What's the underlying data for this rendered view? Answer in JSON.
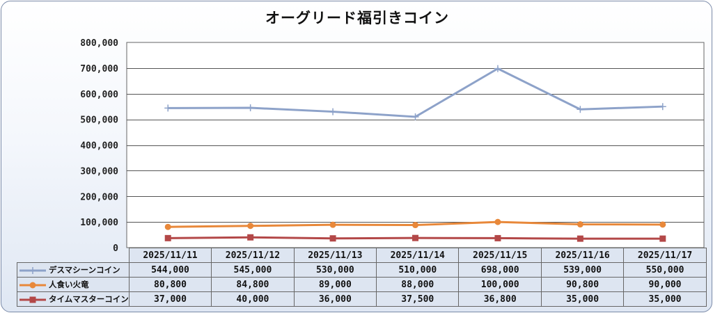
{
  "chart_data": {
    "type": "line",
    "title": "オーグリード福引きコイン",
    "categories": [
      "2025/11/11",
      "2025/11/12",
      "2025/11/13",
      "2025/11/14",
      "2025/11/15",
      "2025/11/16",
      "2025/11/17"
    ],
    "ylim": [
      0,
      800000
    ],
    "yticks": [
      0,
      100000,
      200000,
      300000,
      400000,
      500000,
      600000,
      700000,
      800000
    ],
    "ytick_labels": [
      "0",
      "100,000",
      "200,000",
      "300,000",
      "400,000",
      "500,000",
      "600,000",
      "700,000",
      "800,000"
    ],
    "grid": true,
    "legend": "data-table",
    "series": [
      {
        "name": "デスマシーンコイン",
        "values": [
          544000,
          545000,
          530000,
          510000,
          698000,
          539000,
          550000
        ],
        "labels": [
          "544,000",
          "545,000",
          "530,000",
          "510,000",
          "698,000",
          "539,000",
          "550,000"
        ],
        "color": "#8da2c9",
        "marker": "plus"
      },
      {
        "name": "人食い火竜",
        "values": [
          80800,
          84800,
          89000,
          88000,
          100000,
          90800,
          90000
        ],
        "labels": [
          "80,800",
          "84,800",
          "89,000",
          "88,000",
          "100,000",
          "90,800",
          "90,000"
        ],
        "color": "#e8883a",
        "marker": "circle"
      },
      {
        "name": "タイムマスターコイン",
        "values": [
          37000,
          40000,
          36000,
          37500,
          36800,
          35000,
          35000
        ],
        "labels": [
          "37,000",
          "40,000",
          "36,000",
          "37,500",
          "36,800",
          "35,000",
          "35,000"
        ],
        "color": "#b34848",
        "marker": "square"
      }
    ]
  }
}
